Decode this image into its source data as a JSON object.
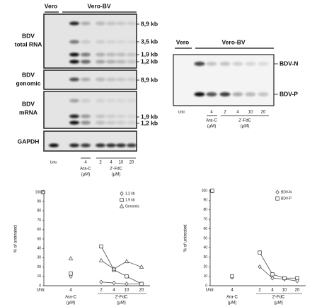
{
  "blots": {
    "header": [
      "Vero",
      "Vero-BV"
    ],
    "rows": [
      {
        "label": [
          "BDV",
          "total RNA"
        ],
        "sizes": [
          "8,9 kb",
          "3,5 kb",
          "1,9 kb",
          "1,2 kb"
        ]
      },
      {
        "label": [
          "BDV",
          "genomic"
        ],
        "sizes": [
          "8,9 kb"
        ]
      },
      {
        "label": [
          "BDV",
          "mRNA"
        ],
        "sizes": [
          "1,9 kb",
          "1,2 kb"
        ]
      },
      {
        "label": [
          "GAPDH"
        ],
        "sizes": []
      }
    ],
    "lanes": [
      "Untr.",
      null,
      "4",
      "2",
      "4",
      "10",
      "20"
    ],
    "groups": [
      {
        "label": "Ara-C",
        "unit": "(µM)"
      },
      {
        "label": "2'-FdC",
        "unit": "(µM)"
      }
    ]
  },
  "western": {
    "header": [
      "Vero",
      "Vero-BV"
    ],
    "bands": [
      "BDV-N",
      "BDV-P"
    ],
    "lanes": [
      "Untr.",
      null,
      "4",
      "2",
      "4",
      "10",
      "20"
    ],
    "groups": [
      {
        "label": "Ara-C",
        "unit": "(µM)"
      },
      {
        "label": "2'-FdC",
        "unit": "(µM)"
      }
    ]
  },
  "chart_data": [
    {
      "type": "line",
      "ylabel": "% of untreated",
      "ylim": [
        0,
        100
      ],
      "yticks": [
        0,
        10,
        20,
        30,
        40,
        50,
        60,
        70,
        80,
        90,
        100
      ],
      "legend": "upper right",
      "groups": [
        {
          "categories": [
            "Untr."
          ]
        },
        {
          "categories": [
            "4"
          ],
          "label": "Ara-C",
          "unit": "(µM)"
        },
        {
          "categories": [
            "2",
            "4",
            "10",
            "20"
          ],
          "label": "2'-FdC",
          "unit": "(µM)"
        }
      ],
      "series": [
        {
          "name": "1.2 kb",
          "marker": "diamond",
          "color": "#555555",
          "values": [
            [
              100
            ],
            [
              10
            ],
            [
              4,
              3,
              2,
              2
            ]
          ]
        },
        {
          "name": "1.9 kb",
          "marker": "square",
          "color": "#444444",
          "values": [
            [
              100
            ],
            [
              13
            ],
            [
              42,
              17,
              10,
              2
            ]
          ]
        },
        {
          "name": "Genomic",
          "marker": "triangle",
          "color": "#555555",
          "values": [
            [
              100
            ],
            [
              29
            ],
            [
              27,
              18,
              26,
              20
            ]
          ]
        }
      ]
    },
    {
      "type": "line",
      "ylabel": "% of untreated",
      "ylim": [
        0,
        100
      ],
      "yticks": [
        0,
        10,
        20,
        30,
        40,
        50,
        60,
        70,
        80,
        90,
        100
      ],
      "legend": "upper right",
      "groups": [
        {
          "categories": [
            "Untr."
          ]
        },
        {
          "categories": [
            "4"
          ],
          "label": "Ara-C",
          "unit": "(µM)"
        },
        {
          "categories": [
            "2",
            "4",
            "10",
            "20"
          ],
          "label": "2'-FdC",
          "unit": "(µM)"
        }
      ],
      "series": [
        {
          "name": "BDV-N",
          "marker": "diamond",
          "color": "#555555",
          "values": [
            [
              100
            ],
            [
              9
            ],
            [
              20,
              8,
              7,
              5
            ]
          ]
        },
        {
          "name": "BDV-P",
          "marker": "square",
          "color": "#444444",
          "values": [
            [
              100
            ],
            [
              10
            ],
            [
              35,
              12,
              8,
              8
            ]
          ]
        }
      ]
    }
  ]
}
